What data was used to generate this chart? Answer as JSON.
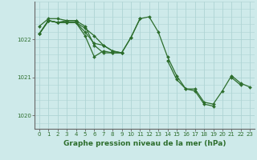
{
  "title": "Graphe pression niveau de la mer (hPa)",
  "bg_color": "#ceeaea",
  "grid_color": "#aed4d4",
  "line_color": "#2d6e2d",
  "marker": "D",
  "markersize": 2.0,
  "linewidth": 0.9,
  "xlim": [
    -0.5,
    23.5
  ],
  "ylim": [
    1019.65,
    1023.0
  ],
  "yticks": [
    1020,
    1021,
    1022
  ],
  "xticks": [
    0,
    1,
    2,
    3,
    4,
    5,
    6,
    7,
    8,
    9,
    10,
    11,
    12,
    13,
    14,
    15,
    16,
    17,
    18,
    19,
    20,
    21,
    22,
    23
  ],
  "ylabel_fontsize": 5.5,
  "xlabel_fontsize": 6.5,
  "series": [
    [
      1022.35,
      1022.55,
      1022.55,
      1022.5,
      1022.5,
      null,
      null,
      null,
      null,
      null,
      null,
      null,
      null,
      null,
      null,
      null,
      null,
      null,
      null,
      null,
      null,
      null,
      null,
      null
    ],
    [
      1022.15,
      1022.5,
      1022.45,
      1022.45,
      1022.45,
      1022.3,
      1022.1,
      1021.85,
      1021.7,
      1021.65,
      1022.05,
      1022.55,
      1022.6,
      1022.2,
      1021.55,
      1021.05,
      1020.7,
      1020.7,
      1020.35,
      1020.3,
      1020.65,
      1021.05,
      1020.85,
      1020.75
    ],
    [
      1022.15,
      1022.5,
      1022.45,
      1022.5,
      1022.5,
      1022.35,
      1021.85,
      1021.65,
      1021.65,
      1021.65,
      null,
      null,
      null,
      null,
      null,
      null,
      null,
      null,
      null,
      null,
      null,
      null,
      null,
      null
    ],
    [
      1022.15,
      1022.5,
      1022.45,
      1022.45,
      1022.45,
      1022.1,
      1021.55,
      1021.7,
      1021.65,
      1021.65,
      1022.05,
      1022.55,
      null,
      null,
      1021.45,
      1020.95,
      1020.7,
      1020.65,
      1020.3,
      1020.25,
      null,
      1021.0,
      1020.8,
      null
    ],
    [
      1022.15,
      1022.5,
      1022.45,
      1022.45,
      1022.45,
      1022.2,
      1021.9,
      1021.85,
      1021.7,
      1021.65,
      null,
      null,
      null,
      null,
      null,
      null,
      null,
      null,
      null,
      null,
      null,
      null,
      null,
      null
    ]
  ]
}
